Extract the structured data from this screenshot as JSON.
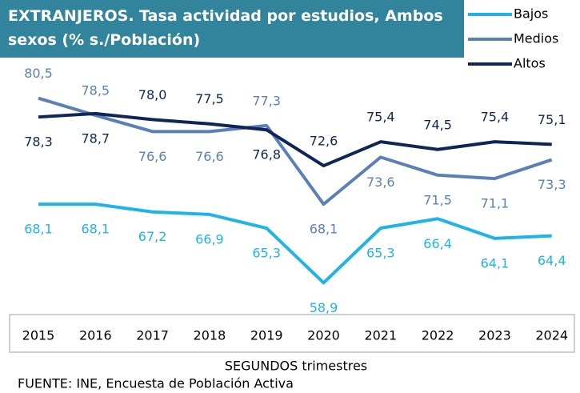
{
  "chart_data": {
    "type": "line",
    "title": "EXTRANJEROS. Tasa actividad por estudios, Ambos sexos (% s./Población)",
    "x_label": "SEGUNDOS trimestres",
    "source": "FUENTE: INE, Encuesta de Población Activa",
    "categories": [
      "2015",
      "2016",
      "2017",
      "2018",
      "2019",
      "2020",
      "2021",
      "2022",
      "2023",
      "2024"
    ],
    "series": [
      {
        "name": "Bajos",
        "color": "#1fb4e8",
        "values": [
          68.1,
          68.1,
          67.2,
          66.9,
          65.3,
          58.9,
          65.3,
          66.4,
          64.1,
          64.4
        ],
        "value_labels": [
          "68,1",
          "68,1",
          "67,2",
          "66,9",
          "65,3",
          "58,9",
          "65,3",
          "66,4",
          "64,1",
          "64,4"
        ]
      },
      {
        "name": "Medios",
        "color": "#5b80b8",
        "values": [
          80.5,
          78.5,
          76.6,
          76.6,
          77.3,
          68.1,
          73.6,
          71.5,
          71.1,
          73.3
        ],
        "value_labels": [
          "80,5",
          "78,5",
          "76,6",
          "76,6",
          "77,3",
          "68,1",
          "73,6",
          "71,5",
          "71,1",
          "73,3"
        ]
      },
      {
        "name": "Altos",
        "color": "#0f2557",
        "values": [
          78.3,
          78.7,
          78.0,
          77.5,
          76.8,
          72.6,
          75.4,
          74.5,
          75.4,
          75.1
        ],
        "value_labels": [
          "78,3",
          "78,7",
          "78,0",
          "77,5",
          "76,8",
          "72,6",
          "75,4",
          "74,5",
          "75,4",
          "75,1"
        ]
      }
    ],
    "ylim": [
      55,
      83
    ],
    "legend": "top-right"
  }
}
